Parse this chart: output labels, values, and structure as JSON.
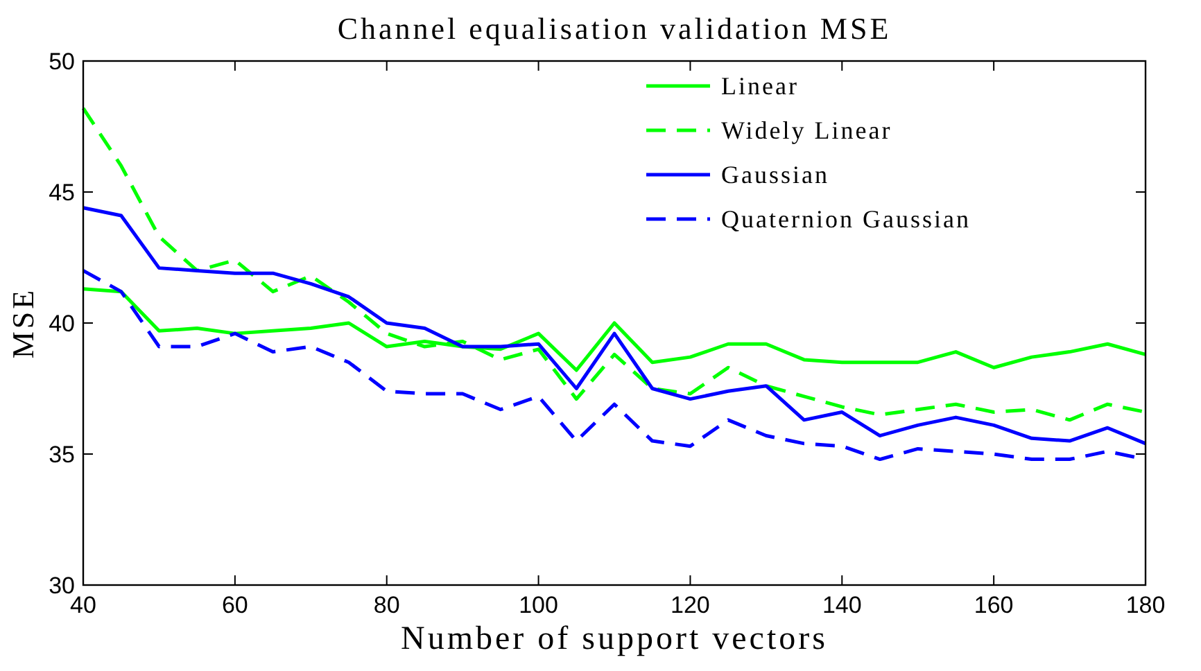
{
  "chart_data": {
    "type": "line",
    "title": "Channel equalisation validation MSE",
    "xlabel": "Number of support vectors",
    "ylabel": "MSE",
    "x": [
      40,
      45,
      50,
      55,
      60,
      65,
      70,
      75,
      80,
      85,
      90,
      95,
      100,
      105,
      110,
      115,
      120,
      125,
      130,
      135,
      140,
      145,
      150,
      155,
      160,
      165,
      170,
      175,
      180
    ],
    "series": [
      {
        "name": "Linear",
        "color": "#00ff00",
        "line_style": "solid",
        "values": [
          41.3,
          41.2,
          39.7,
          39.8,
          39.6,
          39.7,
          39.8,
          40.0,
          39.1,
          39.3,
          39.1,
          39.0,
          39.6,
          38.2,
          40.0,
          38.5,
          38.7,
          39.2,
          39.2,
          38.6,
          38.5,
          38.5,
          38.5,
          38.9,
          38.3,
          38.7,
          38.9,
          39.2,
          38.8
        ]
      },
      {
        "name": "Widely Linear",
        "color": "#00ff00",
        "line_style": "dashed",
        "values": [
          48.2,
          46.0,
          43.3,
          42.0,
          42.4,
          41.2,
          41.8,
          40.8,
          39.6,
          39.1,
          39.3,
          38.6,
          39.0,
          37.1,
          38.8,
          37.5,
          37.3,
          38.3,
          37.6,
          37.2,
          36.8,
          36.5,
          36.7,
          36.9,
          36.6,
          36.7,
          36.3,
          36.9,
          36.6
        ]
      },
      {
        "name": "Gaussian",
        "color": "#0000ff",
        "line_style": "solid",
        "values": [
          44.4,
          44.1,
          42.1,
          42.0,
          41.9,
          41.9,
          41.5,
          41.0,
          40.0,
          39.8,
          39.1,
          39.1,
          39.2,
          37.5,
          39.6,
          37.5,
          37.1,
          37.4,
          37.6,
          36.3,
          36.6,
          35.7,
          36.1,
          36.4,
          36.1,
          35.6,
          35.5,
          36.0,
          35.4
        ]
      },
      {
        "name": "Quaternion Gaussian",
        "color": "#0000ff",
        "line_style": "dashed",
        "values": [
          42.0,
          41.2,
          39.1,
          39.1,
          39.6,
          38.9,
          39.1,
          38.5,
          37.4,
          37.3,
          37.3,
          36.7,
          37.2,
          35.5,
          36.9,
          35.5,
          35.3,
          36.3,
          35.7,
          35.4,
          35.3,
          34.8,
          35.2,
          35.1,
          35.0,
          34.8,
          34.8,
          35.1,
          34.8
        ]
      }
    ],
    "xlim": [
      40,
      180
    ],
    "xticks": [
      40,
      60,
      80,
      100,
      120,
      140,
      160,
      180
    ],
    "ylim": [
      30,
      50
    ],
    "yticks": [
      30,
      35,
      40,
      45,
      50
    ],
    "grid": false,
    "legend": "top right",
    "marker": "none"
  }
}
